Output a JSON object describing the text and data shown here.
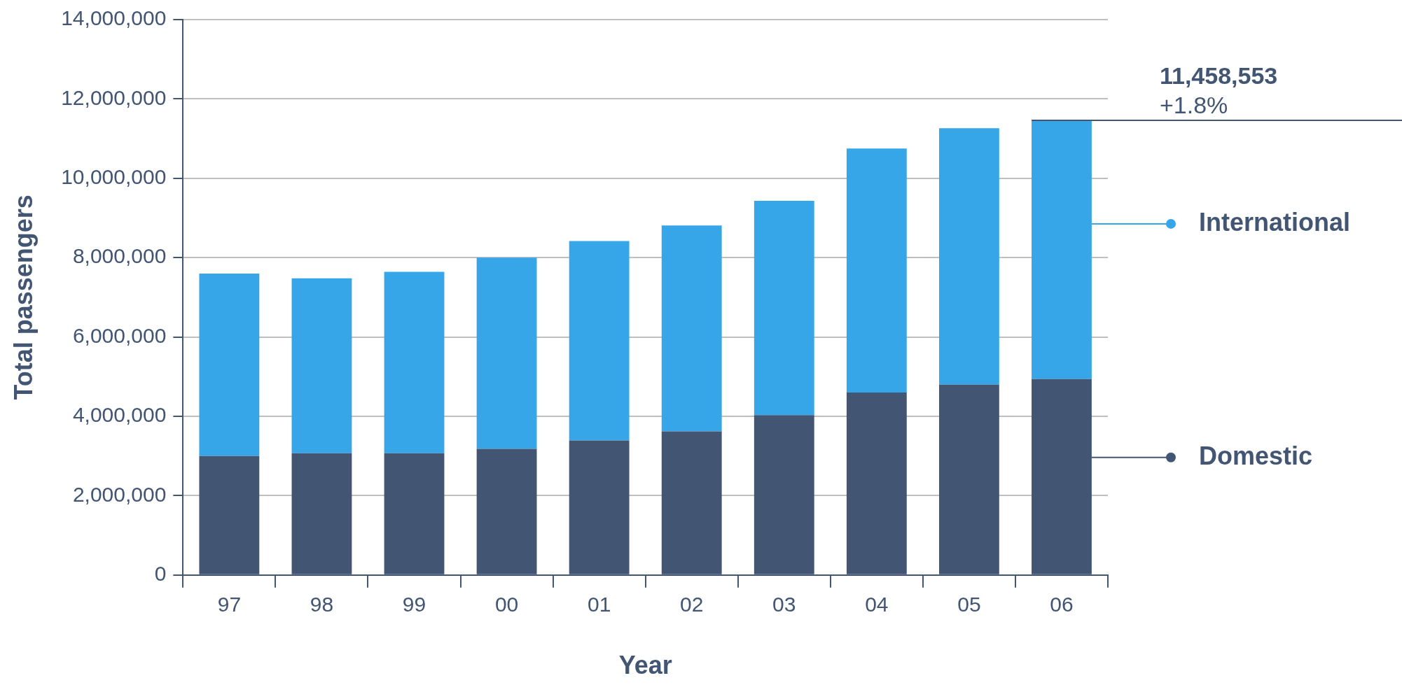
{
  "chart_data": {
    "type": "bar",
    "stacked": true,
    "xlabel": "Year",
    "ylabel": "Total passengers",
    "categories": [
      "97",
      "98",
      "99",
      "00",
      "01",
      "02",
      "03",
      "04",
      "05",
      "06"
    ],
    "series": [
      {
        "name": "Domestic",
        "color": "#425673",
        "values": [
          3000000,
          3070000,
          3070000,
          3180000,
          3390000,
          3620000,
          4030000,
          4600000,
          4800000,
          4940000
        ]
      },
      {
        "name": "International",
        "color": "#37a6e8",
        "values": [
          4600000,
          4410000,
          4570000,
          4820000,
          5030000,
          5190000,
          5400000,
          6150000,
          6460000,
          6520000
        ]
      }
    ],
    "ylim": [
      0,
      14000000
    ],
    "yticks": [
      0,
      {
        "value": 2000000,
        "label": "2,000,000"
      },
      {
        "value": 4000000,
        "label": "4,000,000"
      },
      {
        "value": 6000000,
        "label": "6,000,000"
      },
      {
        "value": 8000000,
        "label": "8,000,000"
      },
      {
        "value": 10000000,
        "label": "10,000,000"
      },
      {
        "value": 12000000,
        "label": "12,000,000"
      },
      {
        "value": 14000000,
        "label": "14,000,000"
      }
    ],
    "grid": "y",
    "legend": "right",
    "ref_lines": [
      {
        "axis": "y",
        "value": 11458553,
        "label": "11,458,553"
      }
    ],
    "annotations": [
      "+1.8%"
    ]
  }
}
